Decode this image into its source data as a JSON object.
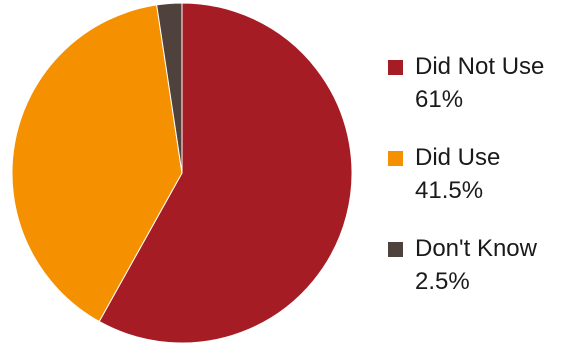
{
  "chart_data": {
    "type": "pie",
    "title": "",
    "slices": [
      {
        "label": "Did Not Use",
        "value": 61,
        "display": "61%",
        "color": "#a51c24"
      },
      {
        "label": "Did Use",
        "value": 41.5,
        "display": "41.5%",
        "color": "#f59100"
      },
      {
        "label": "Don't Know",
        "value": 2.5,
        "display": "2.5%",
        "color": "#4f423c"
      }
    ],
    "start_angle_deg": 0,
    "direction": "clockwise",
    "legend_position": "right"
  }
}
